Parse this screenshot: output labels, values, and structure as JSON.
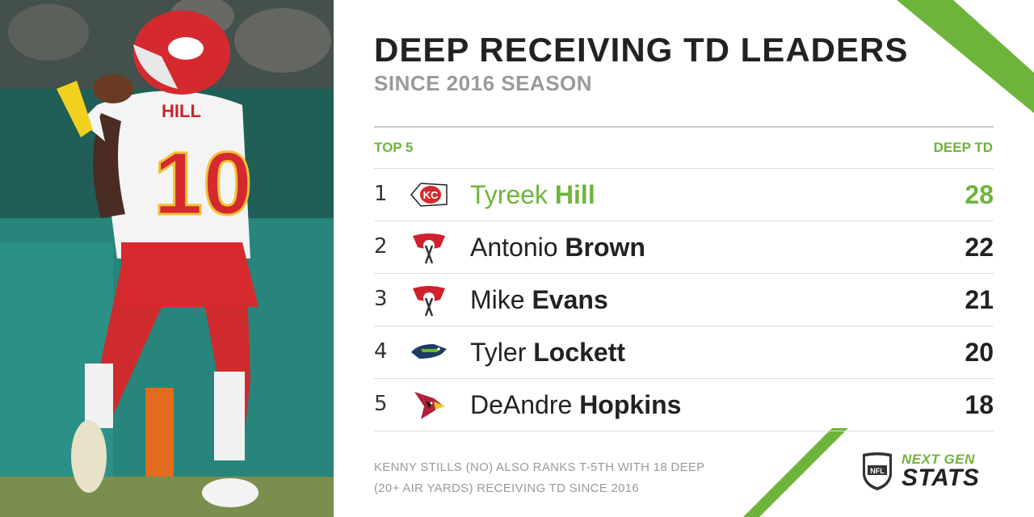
{
  "header": {
    "title": "DEEP RECEIVING TD LEADERS",
    "subtitle": "SINCE 2016 SEASON"
  },
  "table": {
    "left_header": "TOP 5",
    "right_header": "DEEP TD",
    "rows": [
      {
        "rank": "1",
        "first": "Tyreek",
        "last": "Hill",
        "value": "28",
        "team_icon": "chiefs-logo-icon"
      },
      {
        "rank": "2",
        "first": "Antonio",
        "last": "Brown",
        "value": "22",
        "team_icon": "buccaneers-logo-icon"
      },
      {
        "rank": "3",
        "first": "Mike",
        "last": "Evans",
        "value": "21",
        "team_icon": "buccaneers-logo-icon"
      },
      {
        "rank": "4",
        "first": "Tyler",
        "last": "Lockett",
        "value": "20",
        "team_icon": "seahawks-logo-icon"
      },
      {
        "rank": "5",
        "first": "DeAndre",
        "last": "Hopkins",
        "value": "18",
        "team_icon": "cardinals-logo-icon"
      }
    ]
  },
  "footer": {
    "note_line1": "KENNY STILLS (NO) ALSO RANKS T-5TH WITH 18 DEEP",
    "note_line2": "(20+ AIR YARDS) RECEIVING TD SINCE 2016",
    "brand_line1": "NEXT GEN",
    "brand_line2": "STATS"
  },
  "photo": {
    "jersey_name": "HILL",
    "jersey_number": "10"
  },
  "colors": {
    "accent": "#6fb43a",
    "text": "#222222",
    "muted": "#9a9a9a",
    "rule": "#dcdcdc"
  }
}
